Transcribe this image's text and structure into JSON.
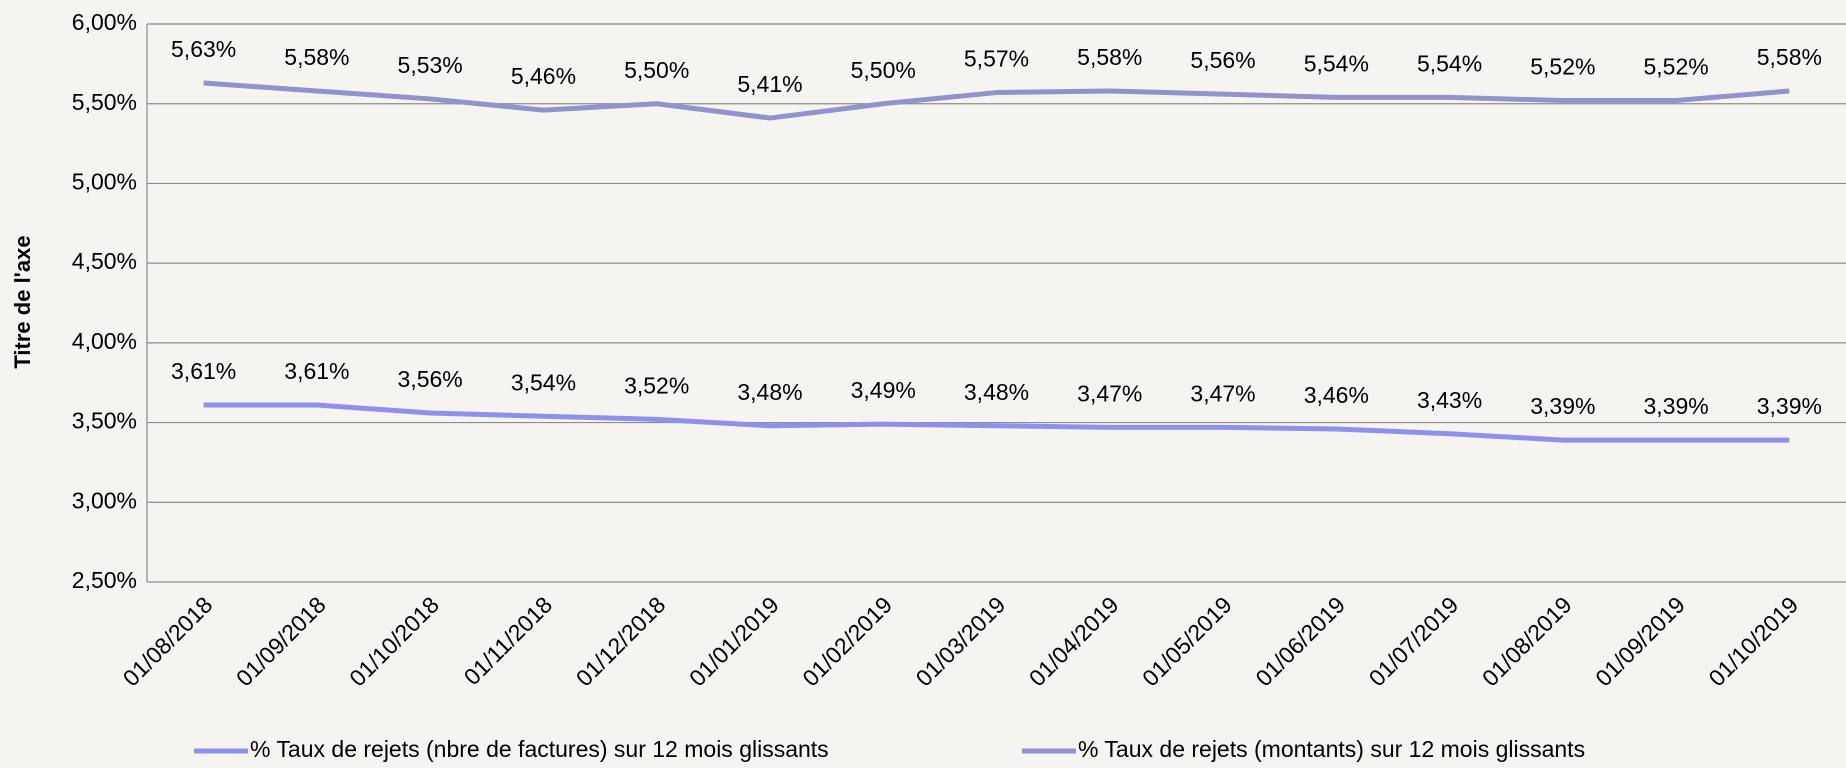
{
  "chart_data": {
    "type": "line",
    "y_axis_title": "Titre de l'axe",
    "categories": [
      "01/08/2018",
      "01/09/2018",
      "01/10/2018",
      "01/11/2018",
      "01/12/2018",
      "01/01/2019",
      "01/02/2019",
      "01/03/2019",
      "01/04/2019",
      "01/05/2019",
      "01/06/2019",
      "01/07/2019",
      "01/08/2019",
      "01/09/2019",
      "01/10/2019"
    ],
    "series": [
      {
        "name": "% Taux de rejets (nbre de factures) sur 12 mois glissants",
        "color": "#8f8ff0",
        "values": [
          3.61,
          3.61,
          3.56,
          3.54,
          3.52,
          3.48,
          3.49,
          3.48,
          3.47,
          3.47,
          3.46,
          3.43,
          3.39,
          3.39,
          3.39
        ],
        "value_labels": [
          "3,61%",
          "3,61%",
          "3,56%",
          "3,54%",
          "3,52%",
          "3,48%",
          "3,49%",
          "3,48%",
          "3,47%",
          "3,47%",
          "3,46%",
          "3,43%",
          "3,39%",
          "3,39%",
          "3,39%"
        ]
      },
      {
        "name": "% Taux de rejets (montants) sur 12 mois glissants",
        "color": "#9292cc",
        "values": [
          5.63,
          5.58,
          5.53,
          5.46,
          5.5,
          5.41,
          5.5,
          5.57,
          5.58,
          5.56,
          5.54,
          5.54,
          5.52,
          5.52,
          5.58
        ],
        "value_labels": [
          "5,63%",
          "5,58%",
          "5,53%",
          "5,46%",
          "5,50%",
          "5,41%",
          "5,50%",
          "5,57%",
          "5,58%",
          "5,56%",
          "5,54%",
          "5,54%",
          "5,52%",
          "5,52%",
          "5,58%"
        ]
      }
    ],
    "ylim": [
      2.5,
      6.0
    ],
    "yticks": [
      {
        "value": 2.5,
        "label": "2,50%"
      },
      {
        "value": 3.0,
        "label": "3,00%"
      },
      {
        "value": 3.5,
        "label": "3,50%"
      },
      {
        "value": 4.0,
        "label": "4,00%"
      },
      {
        "value": 4.5,
        "label": "4,50%"
      },
      {
        "value": 5.0,
        "label": "5,00%"
      },
      {
        "value": 5.5,
        "label": "5,50%"
      },
      {
        "value": 6.0,
        "label": "6,00%"
      }
    ],
    "grid": true,
    "legend": "bottom"
  }
}
